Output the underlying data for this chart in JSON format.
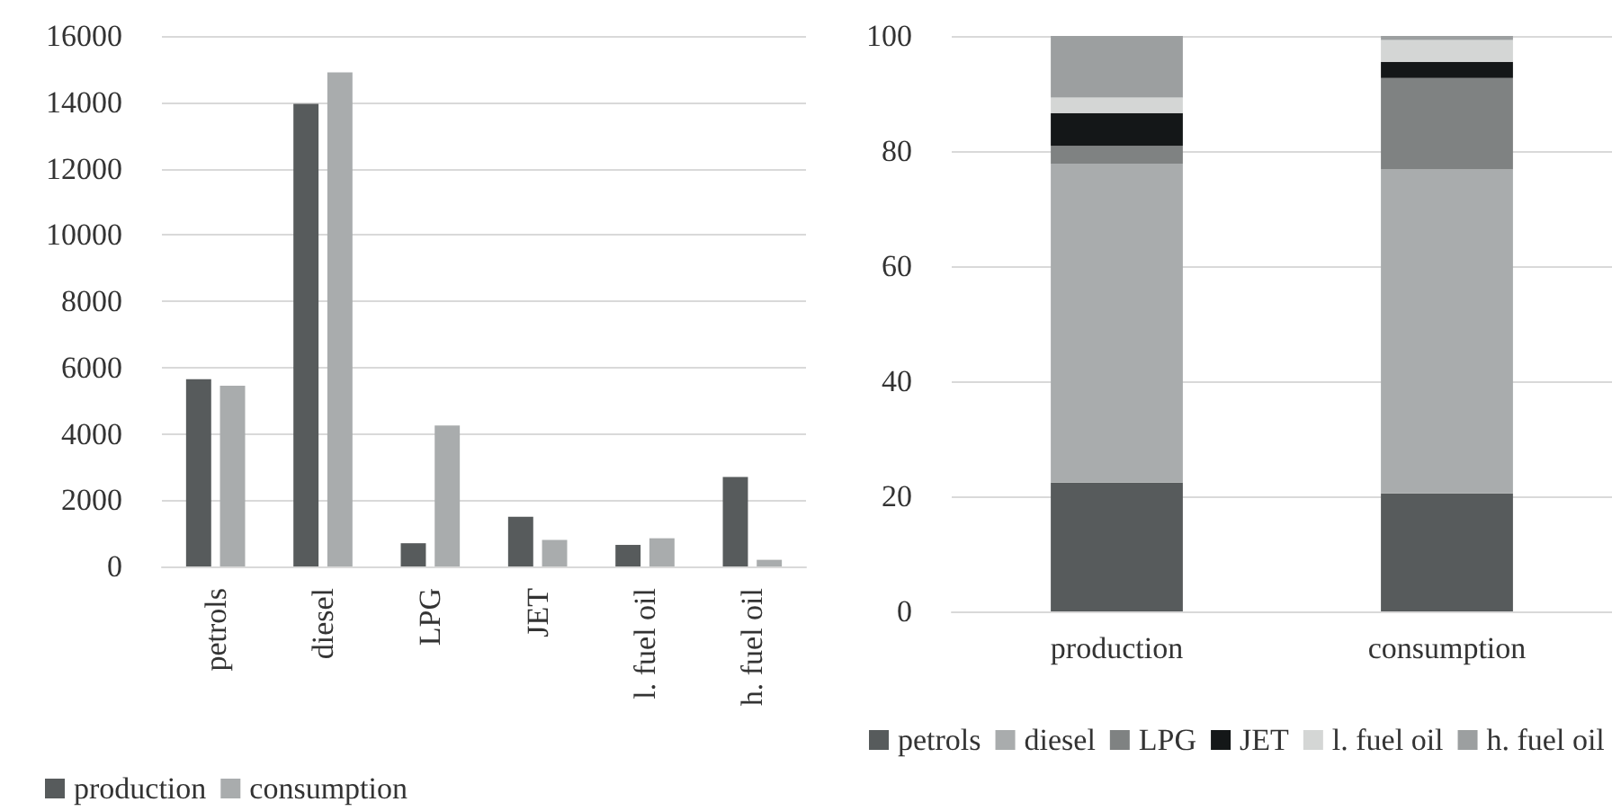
{
  "chart_data": [
    {
      "type": "bar",
      "categories": [
        "petrols",
        "diesel",
        "LPG",
        "JET",
        "l. fuel oil",
        "h. fuel oil"
      ],
      "series": [
        {
          "name": "production",
          "color": "#575b5c",
          "values": [
            5650,
            13950,
            700,
            1500,
            650,
            2700
          ]
        },
        {
          "name": "consumption",
          "color": "#a9acad",
          "values": [
            5450,
            14900,
            4250,
            800,
            850,
            200
          ]
        }
      ],
      "ylim": [
        0,
        16000
      ],
      "yticks": [
        0,
        2000,
        4000,
        6000,
        8000,
        10000,
        12000,
        14000,
        16000
      ],
      "grid": "y",
      "legend": "bottom"
    },
    {
      "type": "bar",
      "stacked": true,
      "categories": [
        "production",
        "consumption"
      ],
      "series": [
        {
          "name": "petrols",
          "color": "#575b5c",
          "values": [
            22.4,
            20.5
          ]
        },
        {
          "name": "diesel",
          "color": "#a9acad",
          "values": [
            55.4,
            56.3
          ]
        },
        {
          "name": "LPG",
          "color": "#7f8282",
          "values": [
            3.1,
            15.9
          ]
        },
        {
          "name": "JET",
          "color": "#141718",
          "values": [
            5.7,
            2.8
          ]
        },
        {
          "name": "l. fuel oil",
          "color": "#d4d6d5",
          "values": [
            2.7,
            3.8
          ]
        },
        {
          "name": "h. fuel oil",
          "color": "#9c9fa0",
          "values": [
            10.7,
            0.7
          ]
        }
      ],
      "ylim": [
        0,
        100
      ],
      "yticks": [
        0,
        20,
        40,
        60,
        80,
        100
      ],
      "grid": "y",
      "legend": "bottom"
    }
  ]
}
